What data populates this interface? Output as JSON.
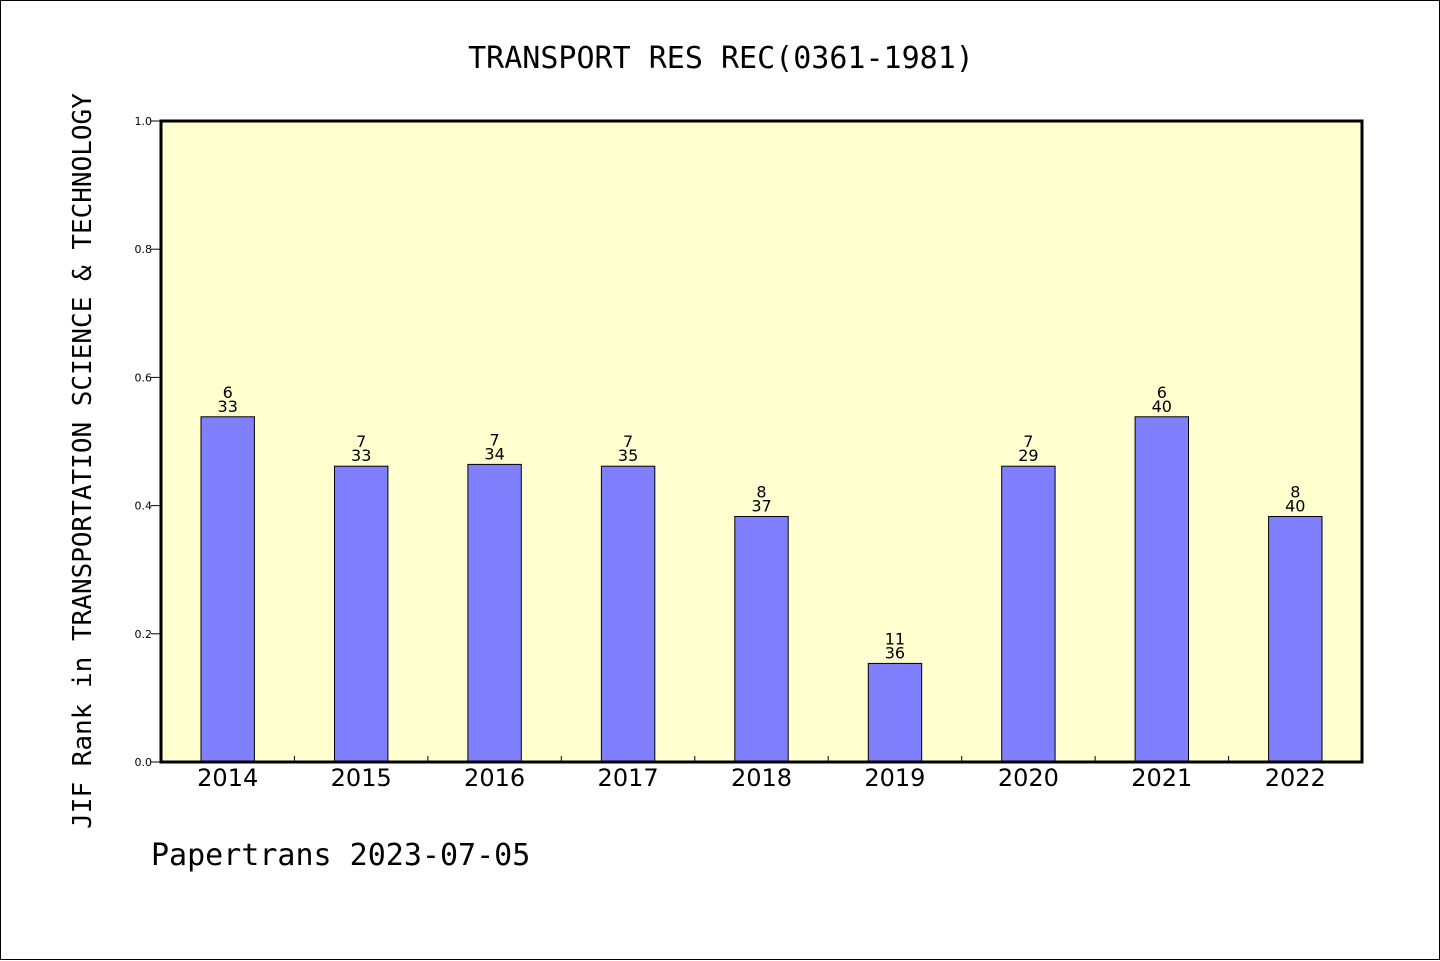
{
  "chart_data": {
    "type": "bar",
    "title": "TRANSPORT RES REC(0361-1981)",
    "ylabel": "JIF Rank in TRANSPORTATION SCIENCE & TECHNOLOGY",
    "xlabel": "",
    "ylim": [
      0.0,
      1.0
    ],
    "yticks": [
      "0.0",
      "0.2",
      "0.4",
      "0.6",
      "0.8",
      "1.0"
    ],
    "categories": [
      "2014",
      "2015",
      "2016",
      "2017",
      "2018",
      "2019",
      "2020",
      "2021",
      "2022"
    ],
    "values": [
      0.5385,
      0.4615,
      0.4643,
      0.4615,
      0.383,
      0.1538,
      0.4615,
      0.5385,
      0.383
    ],
    "rank": [
      "6",
      "7",
      "7",
      "7",
      "8",
      "11",
      "7",
      "6",
      "8"
    ],
    "total": [
      "33",
      "33",
      "34",
      "35",
      "37",
      "36",
      "29",
      "40",
      "40"
    ],
    "grid": false,
    "colors": {
      "bar": "#8080ff",
      "plot_background": "#ffffd0",
      "axes": "#000000"
    }
  },
  "footer": {
    "text": "Papertrans 2023-07-05"
  }
}
